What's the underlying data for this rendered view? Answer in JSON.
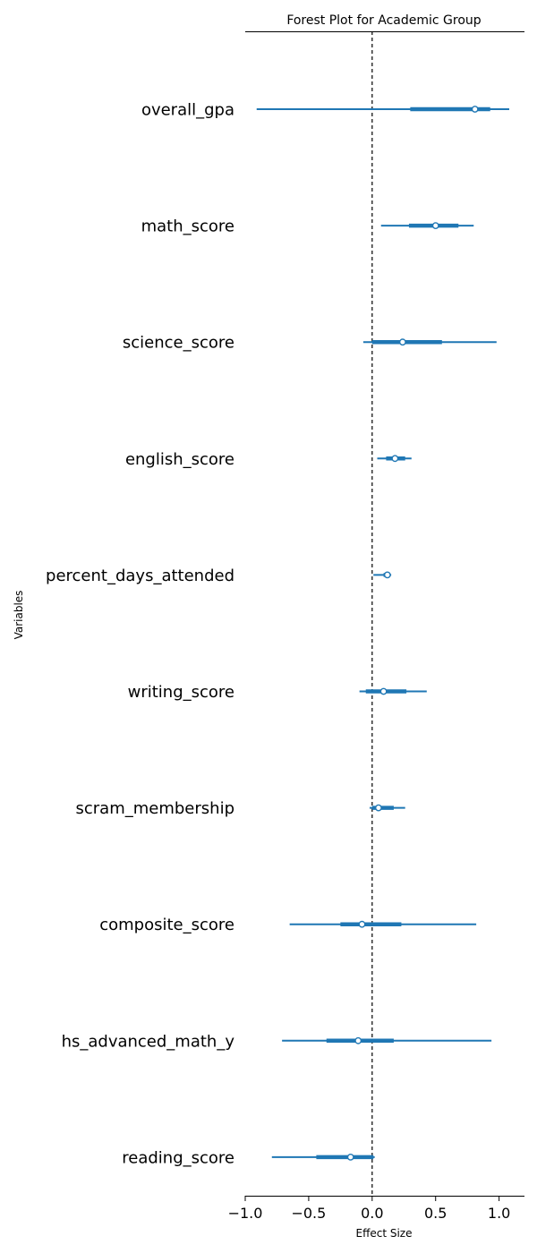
{
  "chart_data": {
    "type": "forest",
    "title": "Forest Plot for Academic Group",
    "xlabel": "Effect Size",
    "ylabel": "Variables",
    "xlim": [
      -1.0,
      1.2
    ],
    "xticks": [
      -1.0,
      -0.5,
      0.0,
      0.5,
      1.0
    ],
    "xtick_labels": [
      "−1.0",
      "−0.5",
      "0.0",
      "0.5",
      "1.0"
    ],
    "reference_line": 0,
    "color": "#1f77b4",
    "variables": [
      {
        "name": "overall_gpa",
        "mean": 0.81,
        "hdi_low": -0.91,
        "hdi_high": 1.08,
        "iqr_low": 0.3,
        "iqr_high": 0.93
      },
      {
        "name": "math_score",
        "mean": 0.5,
        "hdi_low": 0.07,
        "hdi_high": 0.8,
        "iqr_low": 0.29,
        "iqr_high": 0.68
      },
      {
        "name": "science_score",
        "mean": 0.24,
        "hdi_low": -0.07,
        "hdi_high": 0.98,
        "iqr_low": 0.0,
        "iqr_high": 0.55
      },
      {
        "name": "english_score",
        "mean": 0.18,
        "hdi_low": 0.04,
        "hdi_high": 0.31,
        "iqr_low": 0.11,
        "iqr_high": 0.26
      },
      {
        "name": "percent_days_attended",
        "mean": 0.12,
        "hdi_low": 0.01,
        "hdi_high": 0.15,
        "iqr_low": 0.09,
        "iqr_high": 0.14
      },
      {
        "name": "writing_score",
        "mean": 0.09,
        "hdi_low": -0.1,
        "hdi_high": 0.43,
        "iqr_low": -0.05,
        "iqr_high": 0.27
      },
      {
        "name": "scram_membership",
        "mean": 0.05,
        "hdi_low": -0.02,
        "hdi_high": 0.26,
        "iqr_low": 0.0,
        "iqr_high": 0.17
      },
      {
        "name": "composite_score",
        "mean": -0.08,
        "hdi_low": -0.65,
        "hdi_high": 0.82,
        "iqr_low": -0.25,
        "iqr_high": 0.23
      },
      {
        "name": "hs_advanced_math_y",
        "mean": -0.11,
        "hdi_low": -0.71,
        "hdi_high": 0.94,
        "iqr_low": -0.36,
        "iqr_high": 0.17
      },
      {
        "name": "reading_score",
        "mean": -0.17,
        "hdi_low": -0.79,
        "hdi_high": 0.02,
        "iqr_low": -0.44,
        "iqr_high": 0.01
      }
    ]
  }
}
